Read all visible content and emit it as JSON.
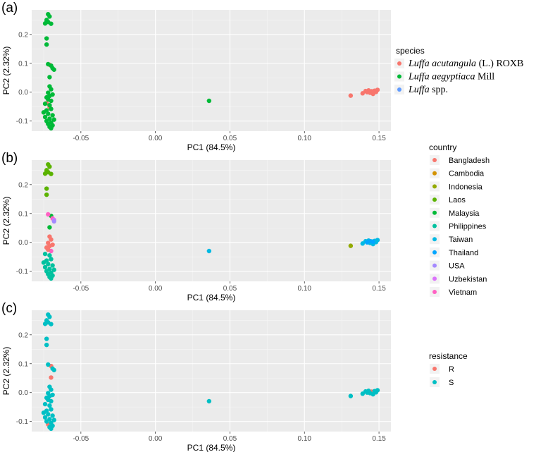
{
  "chart_data": [
    {
      "panel": "(a)",
      "type": "scatter",
      "xlabel": "PC1 (84.5%)",
      "ylabel": "PC2 (2.32%)",
      "xlim": [
        -0.083,
        0.158
      ],
      "ylim": [
        -0.135,
        0.285
      ],
      "x_ticks": [
        -0.05,
        0.0,
        0.05,
        0.1,
        0.15
      ],
      "x_tick_labels": [
        "-0.05",
        "0.00",
        "0.05",
        "0.10",
        "0.15"
      ],
      "y_ticks": [
        -0.1,
        0.0,
        0.1,
        0.2
      ],
      "y_tick_labels": [
        "-0.1",
        "0.0",
        "0.1",
        "0.2"
      ],
      "grid": true,
      "legend": {
        "title": "species",
        "placement": "right",
        "entries": [
          {
            "name_italic": "Luffa acutangula",
            "name_rest": " (L.) ROXB",
            "color": "#F8766D"
          },
          {
            "name_italic": "Luffa aegyptiaca",
            "name_rest": " Mill",
            "color": "#00BA38"
          },
          {
            "name_italic": "Luffa",
            "name_rest": " spp.",
            "color": "#619CFF"
          }
        ]
      },
      "series": [
        {
          "name": "Luffa acutangula (L.) ROXB",
          "color": "#F8766D",
          "points": [
            [
              -0.071,
              0.095
            ],
            [
              -0.073,
              -0.038
            ],
            [
              -0.071,
              -0.052
            ],
            [
              0.131,
              -0.012
            ],
            [
              0.139,
              -0.004
            ],
            [
              0.141,
              0.004
            ],
            [
              0.143,
              0.006
            ],
            [
              0.144,
              -0.002
            ],
            [
              0.145,
              0.003
            ],
            [
              0.146,
              -0.006
            ],
            [
              0.147,
              0.005
            ],
            [
              0.148,
              0.001
            ],
            [
              0.149,
              0.008
            ],
            [
              0.142,
              0.0
            ],
            [
              0.146,
              0.002
            ]
          ]
        },
        {
          "name": "Luffa aegyptiaca Mill",
          "color": "#00BA38",
          "points": [
            [
              -0.072,
              0.27
            ],
            [
              -0.071,
              0.262
            ],
            [
              -0.073,
              0.25
            ],
            [
              -0.072,
              0.243
            ],
            [
              -0.074,
              0.238
            ],
            [
              -0.07,
              0.237
            ],
            [
              -0.073,
              0.186
            ],
            [
              -0.073,
              0.165
            ],
            [
              -0.072,
              0.097
            ],
            [
              -0.07,
              0.092
            ],
            [
              -0.069,
              0.083
            ],
            [
              -0.068,
              0.078
            ],
            [
              -0.071,
              0.052
            ],
            [
              -0.071,
              0.02
            ],
            [
              -0.07,
              0.01
            ],
            [
              -0.072,
              -0.002
            ],
            [
              -0.069,
              -0.008
            ],
            [
              -0.071,
              -0.013
            ],
            [
              -0.073,
              -0.018
            ],
            [
              -0.072,
              -0.025
            ],
            [
              -0.07,
              -0.03
            ],
            [
              -0.074,
              -0.04
            ],
            [
              -0.071,
              -0.045
            ],
            [
              -0.07,
              -0.058
            ],
            [
              -0.073,
              -0.063
            ],
            [
              -0.075,
              -0.07
            ],
            [
              -0.072,
              -0.075
            ],
            [
              -0.069,
              -0.08
            ],
            [
              -0.074,
              -0.086
            ],
            [
              -0.071,
              -0.092
            ],
            [
              -0.068,
              -0.095
            ],
            [
              -0.073,
              -0.1
            ],
            [
              -0.07,
              -0.105
            ],
            [
              -0.072,
              -0.11
            ],
            [
              -0.069,
              -0.115
            ],
            [
              -0.071,
              -0.12
            ],
            [
              -0.07,
              -0.125
            ],
            [
              0.036,
              -0.03
            ]
          ]
        }
      ]
    },
    {
      "panel": "(b)",
      "type": "scatter",
      "xlabel": "PC1 (84.5%)",
      "ylabel": "PC2 (2.32%)",
      "xlim": [
        -0.083,
        0.158
      ],
      "ylim": [
        -0.135,
        0.285
      ],
      "x_ticks": [
        -0.05,
        0.0,
        0.05,
        0.1,
        0.15
      ],
      "x_tick_labels": [
        "-0.05",
        "0.00",
        "0.05",
        "0.10",
        "0.15"
      ],
      "y_ticks": [
        -0.1,
        0.0,
        0.1,
        0.2
      ],
      "y_tick_labels": [
        "-0.1",
        "0.0",
        "0.1",
        "0.2"
      ],
      "grid": true,
      "legend": {
        "title": "country",
        "placement": "right",
        "entries": [
          {
            "name": "Bangladesh",
            "color": "#F8766D"
          },
          {
            "name": "Cambodia",
            "color": "#D39200"
          },
          {
            "name": "Indonesia",
            "color": "#93AA00"
          },
          {
            "name": "Laos",
            "color": "#5BB300"
          },
          {
            "name": "Malaysia",
            "color": "#00BA38"
          },
          {
            "name": "Philippines",
            "color": "#00C19F"
          },
          {
            "name": "Taiwan",
            "color": "#00B9E3"
          },
          {
            "name": "Thailand",
            "color": "#00A5FF"
          },
          {
            "name": "USA",
            "color": "#A58AFF"
          },
          {
            "name": "Uzbekistan",
            "color": "#DB72FB"
          },
          {
            "name": "Vietnam",
            "color": "#FF61C3"
          }
        ]
      },
      "series": [
        {
          "name": "Laos",
          "color": "#5BB300",
          "points": [
            [
              -0.072,
              0.27
            ],
            [
              -0.071,
              0.262
            ],
            [
              -0.073,
              0.25
            ],
            [
              -0.072,
              0.243
            ],
            [
              -0.074,
              0.238
            ],
            [
              -0.07,
              0.237
            ],
            [
              -0.073,
              0.186
            ],
            [
              -0.073,
              0.165
            ]
          ]
        },
        {
          "name": "Malaysia",
          "color": "#00BA38",
          "points": [
            [
              -0.07,
              0.092
            ],
            [
              -0.071,
              0.052
            ]
          ]
        },
        {
          "name": "Vietnam",
          "color": "#FF61C3",
          "points": [
            [
              -0.072,
              0.097
            ],
            [
              -0.069,
              0.083
            ],
            [
              -0.07,
              -0.03
            ]
          ]
        },
        {
          "name": "Uzbekistan",
          "color": "#DB72FB",
          "points": [
            [
              -0.068,
              0.078
            ]
          ]
        },
        {
          "name": "USA",
          "color": "#A58AFF",
          "points": [
            [
              -0.068,
              0.073
            ]
          ]
        },
        {
          "name": "Bangladesh",
          "color": "#F8766D",
          "points": [
            [
              -0.071,
              0.02
            ],
            [
              -0.07,
              0.01
            ],
            [
              -0.072,
              -0.002
            ],
            [
              -0.069,
              -0.008
            ],
            [
              -0.071,
              -0.013
            ],
            [
              -0.073,
              -0.018
            ],
            [
              -0.072,
              -0.025
            ]
          ]
        },
        {
          "name": "Indonesia",
          "color": "#93AA00",
          "points": [
            [
              0.131,
              -0.012
            ]
          ]
        },
        {
          "name": "Philippines",
          "color": "#00C19F",
          "points": [
            [
              -0.074,
              -0.04
            ],
            [
              -0.071,
              -0.045
            ],
            [
              -0.07,
              -0.058
            ],
            [
              -0.073,
              -0.063
            ],
            [
              -0.075,
              -0.07
            ],
            [
              -0.072,
              -0.075
            ],
            [
              -0.069,
              -0.08
            ],
            [
              -0.074,
              -0.086
            ],
            [
              -0.071,
              -0.092
            ],
            [
              -0.068,
              -0.095
            ],
            [
              -0.073,
              -0.1
            ],
            [
              -0.07,
              -0.105
            ],
            [
              -0.072,
              -0.11
            ],
            [
              -0.069,
              -0.115
            ],
            [
              -0.071,
              -0.12
            ],
            [
              -0.07,
              -0.125
            ]
          ]
        },
        {
          "name": "Taiwan",
          "color": "#00B9E3",
          "points": [
            [
              0.036,
              -0.03
            ],
            [
              0.139,
              -0.004
            ],
            [
              0.141,
              0.004
            ],
            [
              0.143,
              0.006
            ],
            [
              0.144,
              -0.002
            ],
            [
              0.145,
              0.003
            ],
            [
              0.146,
              -0.006
            ],
            [
              0.147,
              0.005
            ],
            [
              0.148,
              0.001
            ],
            [
              0.149,
              0.008
            ]
          ]
        },
        {
          "name": "Thailand",
          "color": "#00A5FF",
          "points": [
            [
              0.142,
              0.0
            ],
            [
              0.146,
              0.002
            ],
            [
              0.144,
              0.004
            ]
          ]
        }
      ]
    },
    {
      "panel": "(c)",
      "type": "scatter",
      "xlabel": "PC1 (84.5%)",
      "ylabel": "PC2 (2.32%)",
      "xlim": [
        -0.083,
        0.158
      ],
      "ylim": [
        -0.135,
        0.285
      ],
      "x_ticks": [
        -0.05,
        0.0,
        0.05,
        0.1,
        0.15
      ],
      "x_tick_labels": [
        "-0.05",
        "0.00",
        "0.05",
        "0.10",
        "0.15"
      ],
      "y_ticks": [
        -0.1,
        0.0,
        0.1,
        0.2
      ],
      "y_tick_labels": [
        "-0.1",
        "0.0",
        "0.1",
        "0.2"
      ],
      "grid": true,
      "legend": {
        "title": "resistance",
        "placement": "right",
        "entries": [
          {
            "name": "R",
            "color": "#F8766D"
          },
          {
            "name": "S",
            "color": "#00BFC4"
          }
        ]
      },
      "series": [
        {
          "name": "R",
          "color": "#F8766D",
          "points": [
            [
              -0.07,
              0.092
            ],
            [
              -0.07,
              0.052
            ],
            [
              -0.072,
              -0.11
            ],
            [
              0.145,
              0.003
            ]
          ]
        },
        {
          "name": "S",
          "color": "#00BFC4",
          "points": [
            [
              -0.072,
              0.27
            ],
            [
              -0.071,
              0.262
            ],
            [
              -0.073,
              0.25
            ],
            [
              -0.072,
              0.243
            ],
            [
              -0.074,
              0.238
            ],
            [
              -0.07,
              0.237
            ],
            [
              -0.073,
              0.186
            ],
            [
              -0.073,
              0.165
            ],
            [
              -0.072,
              0.097
            ],
            [
              -0.069,
              0.083
            ],
            [
              -0.068,
              0.078
            ],
            [
              -0.071,
              0.02
            ],
            [
              -0.07,
              0.01
            ],
            [
              -0.072,
              -0.002
            ],
            [
              -0.069,
              -0.008
            ],
            [
              -0.071,
              -0.013
            ],
            [
              -0.073,
              -0.018
            ],
            [
              -0.072,
              -0.025
            ],
            [
              -0.07,
              -0.03
            ],
            [
              -0.074,
              -0.04
            ],
            [
              -0.071,
              -0.045
            ],
            [
              -0.07,
              -0.058
            ],
            [
              -0.073,
              -0.063
            ],
            [
              -0.075,
              -0.07
            ],
            [
              -0.072,
              -0.075
            ],
            [
              -0.069,
              -0.08
            ],
            [
              -0.074,
              -0.086
            ],
            [
              -0.071,
              -0.092
            ],
            [
              -0.068,
              -0.095
            ],
            [
              -0.073,
              -0.1
            ],
            [
              -0.07,
              -0.105
            ],
            [
              -0.069,
              -0.115
            ],
            [
              -0.071,
              -0.12
            ],
            [
              -0.07,
              -0.125
            ],
            [
              0.036,
              -0.03
            ],
            [
              0.131,
              -0.012
            ],
            [
              0.139,
              -0.004
            ],
            [
              0.141,
              0.004
            ],
            [
              0.143,
              0.006
            ],
            [
              0.144,
              -0.002
            ],
            [
              0.146,
              -0.006
            ],
            [
              0.147,
              0.005
            ],
            [
              0.148,
              0.001
            ],
            [
              0.149,
              0.008
            ],
            [
              0.142,
              0.0
            ]
          ]
        }
      ]
    }
  ]
}
